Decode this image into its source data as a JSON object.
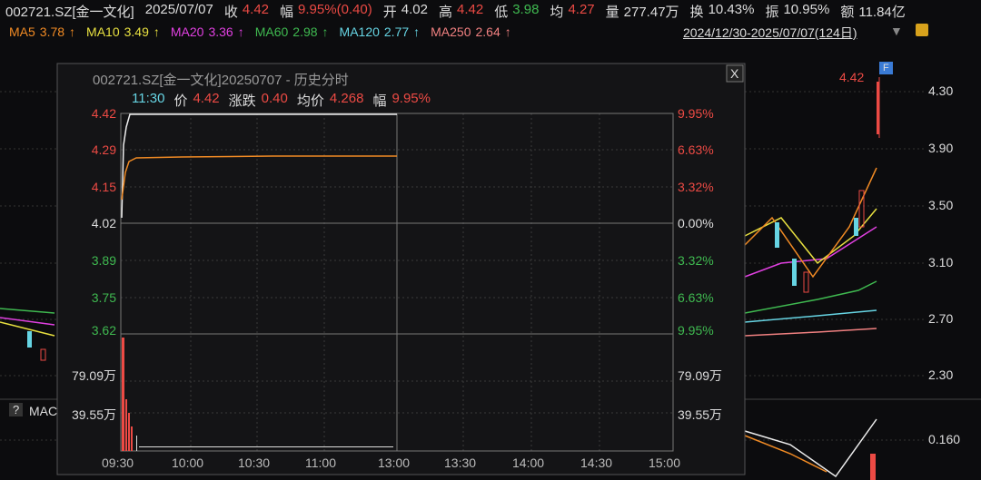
{
  "header": {
    "code": "002721.SZ[金一文化]",
    "date": "2025/07/07",
    "fields": [
      {
        "label": "收",
        "value": "4.42"
      },
      {
        "label": "幅",
        "value": "9.95%(0.40)"
      },
      {
        "label": "开",
        "value": "4.02"
      },
      {
        "label": "高",
        "value": "4.42"
      },
      {
        "label": "低",
        "value": "3.98"
      },
      {
        "label": "均",
        "value": "4.27"
      },
      {
        "label": "量",
        "value": "277.47万"
      },
      {
        "label": "换",
        "value": "10.43%"
      },
      {
        "label": "振",
        "value": "10.95%"
      },
      {
        "label": "额",
        "value": "11.84亿"
      }
    ]
  },
  "ma": [
    {
      "name": "MA5",
      "value": "3.78",
      "arrow": "↑"
    },
    {
      "name": "MA10",
      "value": "3.49",
      "arrow": "↑"
    },
    {
      "name": "MA20",
      "value": "3.36",
      "arrow": "↑"
    },
    {
      "name": "MA60",
      "value": "2.98",
      "arrow": "↑"
    },
    {
      "name": "MA120",
      "value": "2.77",
      "arrow": "↑"
    },
    {
      "name": "MA250",
      "value": "2.64",
      "arrow": "↑"
    }
  ],
  "range": "2024/12/30-2025/07/07(124日)",
  "right_axis": [
    "4.30",
    "3.90",
    "3.50",
    "3.10",
    "2.70",
    "2.30",
    "0.160"
  ],
  "macd_label": "MAC",
  "help": "?",
  "flag": "F",
  "last_price": "4.42",
  "popup": {
    "title": "002721.SZ[金一文化]20250707 - 历史分时",
    "close": "X",
    "info": [
      {
        "label": "11:30"
      },
      {
        "label": "价",
        "value": "4.42"
      },
      {
        "label": "涨跌",
        "value": "0.40"
      },
      {
        "label": "均价",
        "value": "4.268"
      },
      {
        "label": "幅",
        "value": "9.95%"
      }
    ],
    "price_labels": [
      "4.42",
      "4.29",
      "4.15",
      "4.02",
      "3.89",
      "3.75",
      "3.62"
    ],
    "pct_labels": [
      "9.95%",
      "6.63%",
      "3.32%",
      "0.00%",
      "3.32%",
      "6.63%",
      "9.95%"
    ],
    "volume_labels": [
      "79.09万",
      "39.55万"
    ],
    "times": [
      "09:30",
      "10:00",
      "10:30",
      "11:00",
      "13:00",
      "13:30",
      "14:00",
      "14:30",
      "15:00"
    ]
  }
}
